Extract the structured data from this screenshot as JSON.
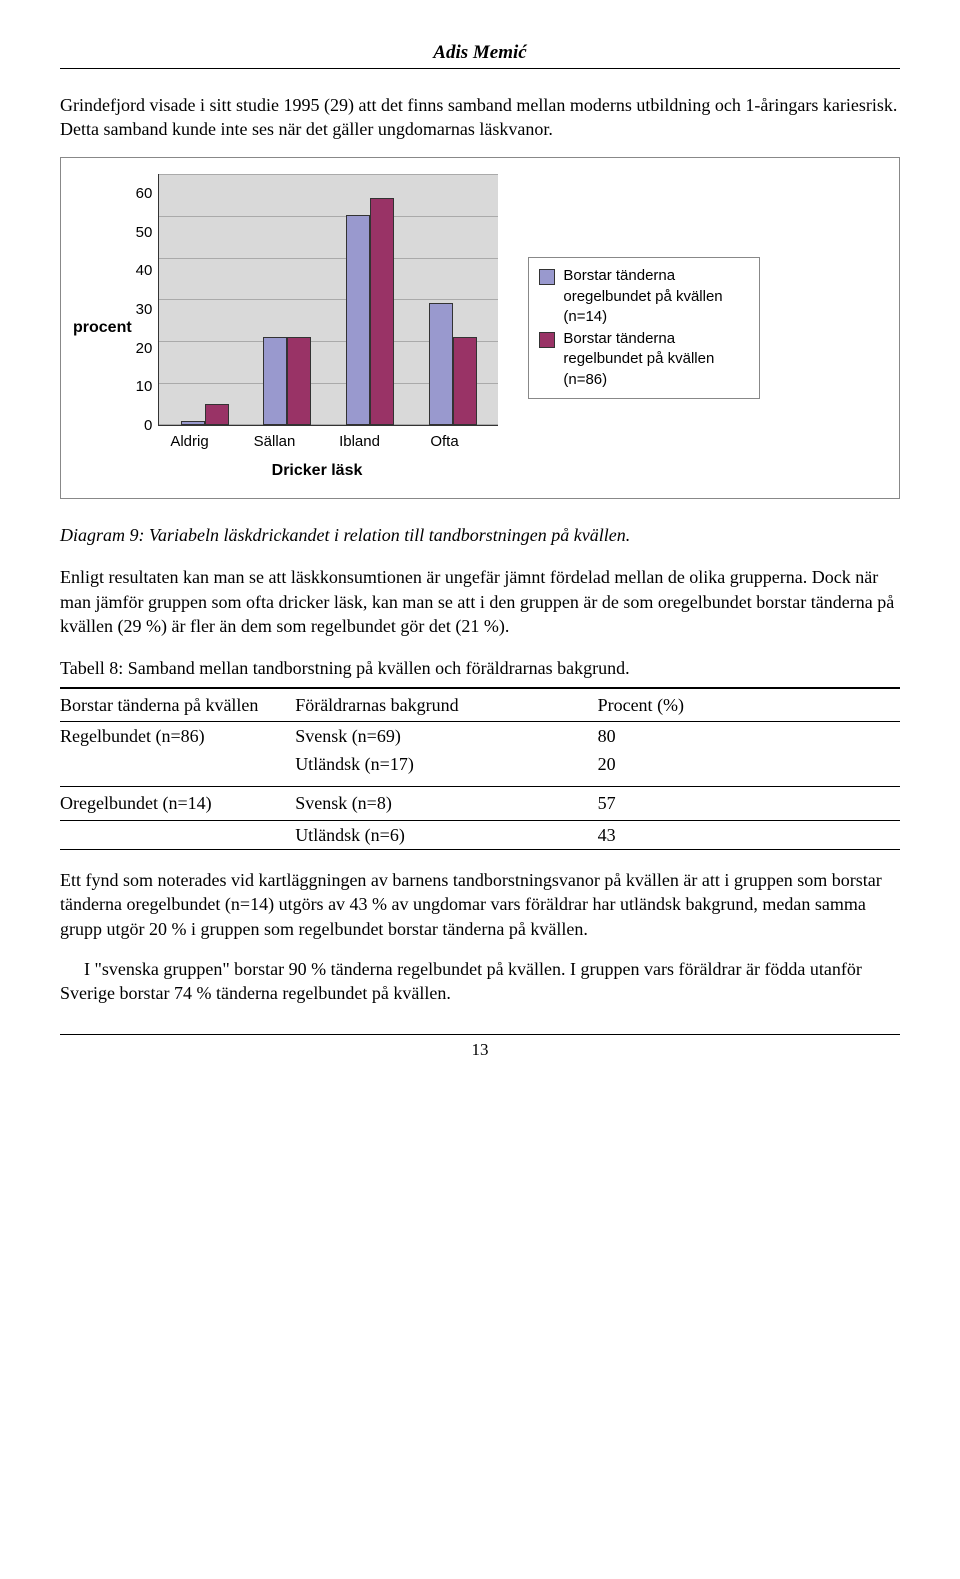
{
  "header": {
    "author": "Adis Memić"
  },
  "paragraphs": {
    "intro": "Grindefjord visade i sitt studie 1995 (29) att det finns samband mellan moderns utbildning och 1-åringars kariesrisk. Detta samband kunde inte ses när det gäller ungdomarnas läskvanor.",
    "after_chart_1": "Enligt resultaten kan man se att läskkonsumtionen är ungefär jämnt fördelad mellan de olika grupperna. Dock när man jämför gruppen som ofta dricker läsk, kan man se att i den gruppen är de som oregelbundet borstar tänderna på kvällen (29 %) är fler än dem som regelbundet gör det (21 %).",
    "closing_1": "Ett fynd som noterades vid kartläggningen av barnens tandborstningsvanor på kvällen är att i gruppen som borstar tänderna oregelbundet (n=14) utgörs av 43 % av ungdomar vars föräldrar har utländsk bakgrund, medan samma grupp utgör 20 % i gruppen som regelbundet borstar tänderna på kvällen.",
    "closing_2": "I \"svenska gruppen\" borstar 90 % tänderna regelbundet på kvällen. I gruppen vars föräldrar är födda utanför Sverige borstar 74 % tänderna regelbundet på kvällen."
  },
  "chart": {
    "type": "bar",
    "y_axis_label": "procent",
    "x_axis_title": "Dricker läsk",
    "categories": [
      "Aldrig",
      "Sällan",
      "Ibland",
      "Ofta"
    ],
    "series": [
      {
        "label": "Borstar tänderna oregelbundet på kvällen (n=14)",
        "color": "#9999ce",
        "values": [
          1,
          21,
          50,
          29
        ]
      },
      {
        "label": "Borstar tänderna regelbundet på kvällen (n=86)",
        "color": "#993366",
        "values": [
          5,
          21,
          54,
          21
        ]
      }
    ],
    "ylim": [
      0,
      60
    ],
    "ytick_step": 10,
    "y_ticks": [
      60,
      50,
      40,
      30,
      20,
      10,
      0
    ],
    "plot_background": "#d9d9d9",
    "grid_color": "#aaaaaa",
    "outer_bg": "#ffffff"
  },
  "diagram_caption": "Diagram 9: Variabeln läskdrickandet i relation till tandborstningen på kvällen.",
  "table_caption": "Tabell 8: Samband mellan tandborstning på kvällen och föräldrarnas bakgrund.",
  "table": {
    "columns": [
      "Borstar tänderna på kvällen",
      "Föräldrarnas bakgrund",
      "Procent (%)"
    ],
    "rows": [
      {
        "c0": "Regelbundet (n=86)",
        "c1": "Svensk (n=69)",
        "c2": "80"
      },
      {
        "c0": "",
        "c1": "Utländsk (n=17)",
        "c2": "20"
      },
      {
        "c0": "Oregelbundet (n=14)",
        "c1": "Svensk (n=8)",
        "c2": "57"
      },
      {
        "c0": "",
        "c1": "Utländsk (n=6)",
        "c2": "43"
      }
    ]
  },
  "page_number": "13"
}
